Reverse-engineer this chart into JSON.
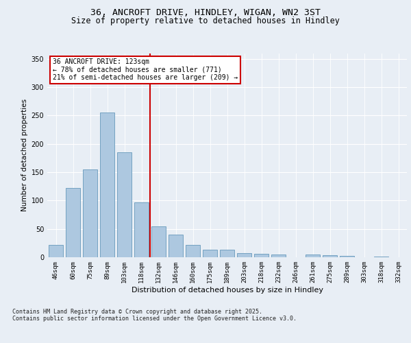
{
  "title1": "36, ANCROFT DRIVE, HINDLEY, WIGAN, WN2 3ST",
  "title2": "Size of property relative to detached houses in Hindley",
  "xlabel": "Distribution of detached houses by size in Hindley",
  "ylabel": "Number of detached properties",
  "categories": [
    "46sqm",
    "60sqm",
    "75sqm",
    "89sqm",
    "103sqm",
    "118sqm",
    "132sqm",
    "146sqm",
    "160sqm",
    "175sqm",
    "189sqm",
    "203sqm",
    "218sqm",
    "232sqm",
    "246sqm",
    "261sqm",
    "275sqm",
    "289sqm",
    "303sqm",
    "318sqm",
    "332sqm"
  ],
  "values": [
    22,
    122,
    155,
    255,
    185,
    97,
    55,
    40,
    22,
    13,
    13,
    7,
    6,
    5,
    0,
    5,
    4,
    3,
    0,
    1,
    0
  ],
  "bar_color": "#adc8e0",
  "bar_edge_color": "#6699bb",
  "bar_width": 0.85,
  "vline_x": 5.5,
  "vline_color": "#cc0000",
  "annotation_text": "36 ANCROFT DRIVE: 123sqm\n← 78% of detached houses are smaller (771)\n21% of semi-detached houses are larger (209) →",
  "annotation_box_color": "#ffffff",
  "annotation_box_edge_color": "#cc0000",
  "ylim": [
    0,
    360
  ],
  "yticks": [
    0,
    50,
    100,
    150,
    200,
    250,
    300,
    350
  ],
  "bg_color": "#e8eef5",
  "plot_bg_color": "#e8eef5",
  "footer": "Contains HM Land Registry data © Crown copyright and database right 2025.\nContains public sector information licensed under the Open Government Licence v3.0.",
  "title_fontsize": 9.5,
  "subtitle_fontsize": 8.5,
  "tick_fontsize": 6.5,
  "label_fontsize": 8,
  "footer_fontsize": 6,
  "annotation_fontsize": 7,
  "ylabel_fontsize": 7.5
}
